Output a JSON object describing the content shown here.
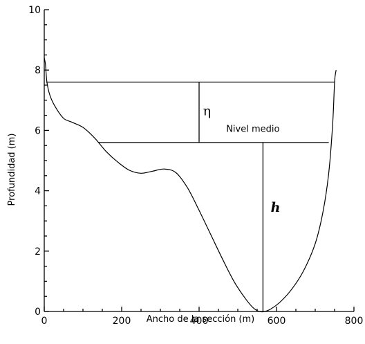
{
  "chart_data": {
    "type": "line",
    "xlabel": "Ancho de la sección (m)",
    "ylabel": "Profundidad (m)",
    "xlim": [
      0,
      800
    ],
    "ylim": [
      0,
      10
    ],
    "x_ticks": [
      "0",
      "200",
      "400",
      "600",
      "800"
    ],
    "y_ticks": [
      "0",
      "2",
      "4",
      "6",
      "8",
      "10"
    ],
    "grid": false,
    "series": [
      {
        "values": [
          [
            0,
            8.4
          ],
          [
            3,
            8.2
          ],
          [
            7,
            7.6
          ],
          [
            15,
            7.15
          ],
          [
            30,
            6.75
          ],
          [
            50,
            6.4
          ],
          [
            70,
            6.28
          ],
          [
            100,
            6.1
          ],
          [
            130,
            5.75
          ],
          [
            160,
            5.3
          ],
          [
            190,
            4.95
          ],
          [
            220,
            4.68
          ],
          [
            250,
            4.58
          ],
          [
            280,
            4.65
          ],
          [
            310,
            4.72
          ],
          [
            340,
            4.6
          ],
          [
            370,
            4.1
          ],
          [
            400,
            3.35
          ],
          [
            430,
            2.55
          ],
          [
            460,
            1.75
          ],
          [
            490,
            1.0
          ],
          [
            520,
            0.42
          ],
          [
            540,
            0.12
          ],
          [
            555,
            0.0
          ],
          [
            570,
            0.0
          ],
          [
            585,
            0.08
          ],
          [
            610,
            0.32
          ],
          [
            640,
            0.75
          ],
          [
            670,
            1.35
          ],
          [
            700,
            2.25
          ],
          [
            720,
            3.3
          ],
          [
            735,
            4.6
          ],
          [
            745,
            6.2
          ],
          [
            750,
            7.6
          ],
          [
            754,
            8.0
          ]
        ]
      }
    ],
    "annotations": [
      {
        "type": "hline",
        "y": 7.6,
        "x_start": 5,
        "x_end": 750
      },
      {
        "type": "hline",
        "y": 5.6,
        "x_start": 140,
        "x_end": 735
      },
      {
        "type": "vline",
        "x": 400,
        "y_start": 5.6,
        "y_end": 7.6
      },
      {
        "type": "vline",
        "x": 565,
        "y_start": 0.0,
        "y_end": 5.6
      },
      {
        "type": "text",
        "text": "η",
        "x": 410,
        "y": 6.5
      },
      {
        "type": "text",
        "text": "Nivel medio",
        "x": 470,
        "y": 5.95
      },
      {
        "type": "text",
        "text": "h",
        "x": 585,
        "y": 3.3
      }
    ]
  }
}
